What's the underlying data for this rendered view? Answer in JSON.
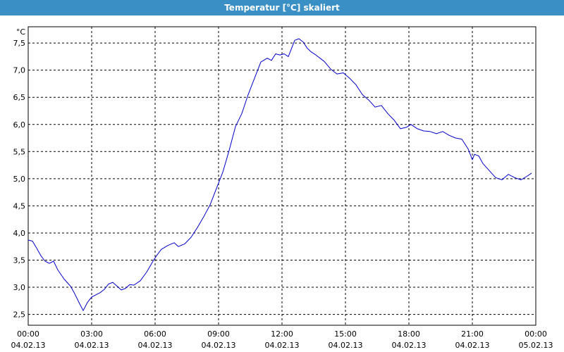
{
  "window": {
    "title": "Temperatur [°C] skaliert"
  },
  "chart_data": {
    "type": "line",
    "title": "Temperatur [°C] skaliert",
    "ylabel": "°C",
    "xlabel": "",
    "ylim": [
      2.3,
      7.8
    ],
    "xlim_hours": [
      0,
      24
    ],
    "grid": true,
    "grid_style": "dashed",
    "y_ticks": [
      "2,5",
      "3,0",
      "3,5",
      "4,0",
      "4,5",
      "5,0",
      "5,5",
      "6,0",
      "6,5",
      "7,0",
      "7,5"
    ],
    "x_ticks": [
      {
        "time": "00:00",
        "date": "04.02.13"
      },
      {
        "time": "03:00",
        "date": "04.02.13"
      },
      {
        "time": "06:00",
        "date": "04.02.13"
      },
      {
        "time": "09:00",
        "date": "04.02.13"
      },
      {
        "time": "12:00",
        "date": "04.02.13"
      },
      {
        "time": "15:00",
        "date": "04.02.13"
      },
      {
        "time": "18:00",
        "date": "04.02.13"
      },
      {
        "time": "21:00",
        "date": "04.02.13"
      },
      {
        "time": "00:00",
        "date": "05.02.13"
      }
    ],
    "series": [
      {
        "color": "#0000cc",
        "x_hours": [
          0.0,
          0.2,
          0.4,
          0.6,
          0.8,
          1.0,
          1.2,
          1.4,
          1.7,
          2.0,
          2.2,
          2.4,
          2.6,
          2.8,
          3.0,
          3.2,
          3.4,
          3.6,
          3.8,
          4.0,
          4.2,
          4.4,
          4.6,
          4.8,
          5.0,
          5.3,
          5.6,
          5.9,
          6.1,
          6.3,
          6.6,
          6.9,
          7.1,
          7.4,
          7.7,
          8.0,
          8.3,
          8.6,
          8.9,
          9.2,
          9.5,
          9.8,
          10.1,
          10.4,
          10.7,
          11.0,
          11.3,
          11.5,
          11.7,
          11.9,
          12.1,
          12.3,
          12.6,
          12.8,
          13.0,
          13.2,
          13.4,
          13.6,
          13.8,
          14.0,
          14.3,
          14.6,
          14.9,
          15.2,
          15.5,
          15.8,
          16.1,
          16.4,
          16.7,
          17.0,
          17.3,
          17.6,
          17.9,
          18.1,
          18.4,
          18.7,
          19.0,
          19.3,
          19.6,
          19.9,
          20.2,
          20.5,
          20.8,
          21.0,
          21.1,
          21.3,
          21.5,
          21.8,
          22.1,
          22.4,
          22.7,
          23.0,
          23.3,
          23.6,
          23.8
        ],
        "values": [
          3.87,
          3.85,
          3.72,
          3.58,
          3.48,
          3.44,
          3.48,
          3.32,
          3.15,
          3.02,
          2.88,
          2.72,
          2.57,
          2.72,
          2.82,
          2.86,
          2.9,
          2.96,
          3.06,
          3.09,
          3.02,
          2.95,
          2.98,
          3.05,
          3.04,
          3.12,
          3.28,
          3.48,
          3.6,
          3.7,
          3.77,
          3.82,
          3.75,
          3.8,
          3.92,
          4.1,
          4.3,
          4.52,
          4.82,
          5.12,
          5.52,
          5.96,
          6.2,
          6.55,
          6.85,
          7.15,
          7.22,
          7.18,
          7.3,
          7.28,
          7.3,
          7.25,
          7.55,
          7.58,
          7.52,
          7.4,
          7.33,
          7.28,
          7.22,
          7.16,
          7.02,
          6.93,
          6.95,
          6.85,
          6.73,
          6.55,
          6.45,
          6.32,
          6.35,
          6.2,
          6.08,
          5.92,
          5.95,
          6.0,
          5.92,
          5.88,
          5.87,
          5.83,
          5.87,
          5.8,
          5.75,
          5.73,
          5.55,
          5.35,
          5.45,
          5.42,
          5.28,
          5.15,
          5.02,
          4.98,
          5.08,
          5.02,
          4.98,
          5.05,
          5.1
        ]
      }
    ]
  }
}
